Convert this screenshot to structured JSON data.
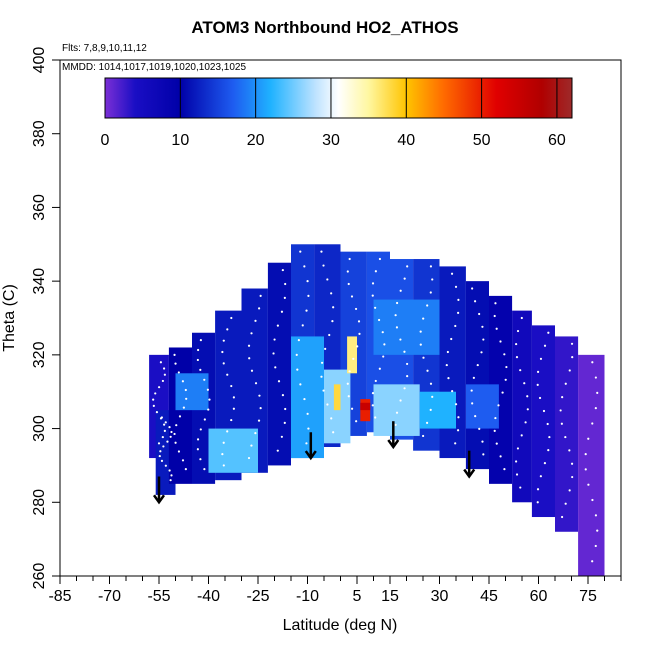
{
  "chart_data": {
    "type": "heatmap",
    "title": "ATOM3 Northbound HO2_ATHOS",
    "annotations": {
      "flights": "Flts: 7,8,9,10,11,12",
      "dates": "MMDD: 1014,1017,1019,1020,1023,1025"
    },
    "xlabel": "Latitude (deg N)",
    "ylabel": "Theta (C)",
    "xlim": [
      -85,
      85
    ],
    "ylim": [
      260,
      400
    ],
    "x_ticks": [
      -85,
      -70,
      -55,
      -40,
      -25,
      -10,
      5,
      15,
      30,
      45,
      60,
      75
    ],
    "x_tick_labels": [
      "-85",
      "-70",
      "-55",
      "-40",
      "-25",
      "-10",
      "5",
      "15",
      "30",
      "45",
      "60",
      "75"
    ],
    "y_ticks": [
      260,
      280,
      300,
      320,
      340,
      360,
      380,
      400
    ],
    "y_tick_labels": [
      "260",
      "280",
      "300",
      "320",
      "340",
      "360",
      "380",
      "400"
    ],
    "colorbar": {
      "min": 0,
      "max": 62,
      "ticks": [
        0,
        10,
        20,
        30,
        40,
        50,
        60
      ],
      "tick_labels": [
        "0",
        "10",
        "20",
        "30",
        "40",
        "50",
        "60"
      ],
      "stops": [
        {
          "value": 0,
          "color": "#7b2fd6"
        },
        {
          "value": 4,
          "color": "#1a0ec4"
        },
        {
          "value": 10,
          "color": "#0000a8"
        },
        {
          "value": 17,
          "color": "#1e5cf0"
        },
        {
          "value": 22,
          "color": "#1fb2ff"
        },
        {
          "value": 28,
          "color": "#bfe3ff"
        },
        {
          "value": 31,
          "color": "#ffffff"
        },
        {
          "value": 35,
          "color": "#fff7a0"
        },
        {
          "value": 40,
          "color": "#ffc400"
        },
        {
          "value": 45,
          "color": "#ff6a00"
        },
        {
          "value": 52,
          "color": "#e00000"
        },
        {
          "value": 58,
          "color": "#b00000"
        },
        {
          "value": 62,
          "color": "#9e2a2a"
        }
      ]
    },
    "regions": [
      {
        "lat": [
          -58,
          -52
        ],
        "theta": [
          292,
          320
        ],
        "value": 4
      },
      {
        "lat": [
          -56,
          -50
        ],
        "theta": [
          282,
          305
        ],
        "value": 12
      },
      {
        "lat": [
          -52,
          -45
        ],
        "theta": [
          285,
          322
        ],
        "value": 10
      },
      {
        "lat": [
          -45,
          -38
        ],
        "theta": [
          285,
          326
        ],
        "value": 11
      },
      {
        "lat": [
          -38,
          -30
        ],
        "theta": [
          286,
          332
        ],
        "value": 12
      },
      {
        "lat": [
          -30,
          -22
        ],
        "theta": [
          288,
          338
        ],
        "value": 12
      },
      {
        "lat": [
          -22,
          -15
        ],
        "theta": [
          290,
          345
        ],
        "value": 11
      },
      {
        "lat": [
          -15,
          -8
        ],
        "theta": [
          292,
          350
        ],
        "value": 14
      },
      {
        "lat": [
          -8,
          0
        ],
        "theta": [
          295,
          350
        ],
        "value": 13
      },
      {
        "lat": [
          0,
          8
        ],
        "theta": [
          298,
          348
        ],
        "value": 15
      },
      {
        "lat": [
          8,
          15
        ],
        "theta": [
          299,
          348
        ],
        "value": 16
      },
      {
        "lat": [
          15,
          22
        ],
        "theta": [
          297,
          346
        ],
        "value": 16
      },
      {
        "lat": [
          22,
          30
        ],
        "theta": [
          294,
          346
        ],
        "value": 14
      },
      {
        "lat": [
          30,
          38
        ],
        "theta": [
          292,
          344
        ],
        "value": 12
      },
      {
        "lat": [
          38,
          45
        ],
        "theta": [
          289,
          340
        ],
        "value": 11
      },
      {
        "lat": [
          45,
          52
        ],
        "theta": [
          285,
          336
        ],
        "value": 9
      },
      {
        "lat": [
          52,
          58
        ],
        "theta": [
          280,
          332
        ],
        "value": 6
      },
      {
        "lat": [
          58,
          65
        ],
        "theta": [
          276,
          328
        ],
        "value": 4
      },
      {
        "lat": [
          65,
          72
        ],
        "theta": [
          272,
          325
        ],
        "value": 3
      },
      {
        "lat": [
          72,
          80
        ],
        "theta": [
          260,
          320
        ],
        "value": 1
      },
      {
        "lat": [
          -40,
          -25
        ],
        "theta": [
          288,
          300
        ],
        "value": 24
      },
      {
        "lat": [
          -15,
          -5
        ],
        "theta": [
          292,
          325
        ],
        "value": 21
      },
      {
        "lat": [
          -5,
          3
        ],
        "theta": [
          296,
          316
        ],
        "value": 26
      },
      {
        "lat": [
          -2,
          0
        ],
        "theta": [
          305,
          312
        ],
        "value": 38
      },
      {
        "lat": [
          2,
          5
        ],
        "theta": [
          315,
          325
        ],
        "value": 36
      },
      {
        "lat": [
          6,
          9
        ],
        "theta": [
          302,
          308
        ],
        "value": 50
      },
      {
        "lat": [
          6,
          9
        ],
        "theta": [
          305,
          307
        ],
        "value": 55
      },
      {
        "lat": [
          10,
          24
        ],
        "theta": [
          298,
          312
        ],
        "value": 26
      },
      {
        "lat": [
          24,
          35
        ],
        "theta": [
          300,
          310
        ],
        "value": 22
      },
      {
        "lat": [
          -50,
          -40
        ],
        "theta": [
          305,
          315
        ],
        "value": 19
      },
      {
        "lat": [
          38,
          48
        ],
        "theta": [
          300,
          312
        ],
        "value": 17
      },
      {
        "lat": [
          10,
          30
        ],
        "theta": [
          320,
          335
        ],
        "value": 19
      }
    ],
    "arrows": [
      {
        "lat": -55,
        "theta": 285
      },
      {
        "lat": -9,
        "theta": 297
      },
      {
        "lat": 16,
        "theta": 300
      },
      {
        "lat": 39,
        "theta": 292
      }
    ]
  }
}
